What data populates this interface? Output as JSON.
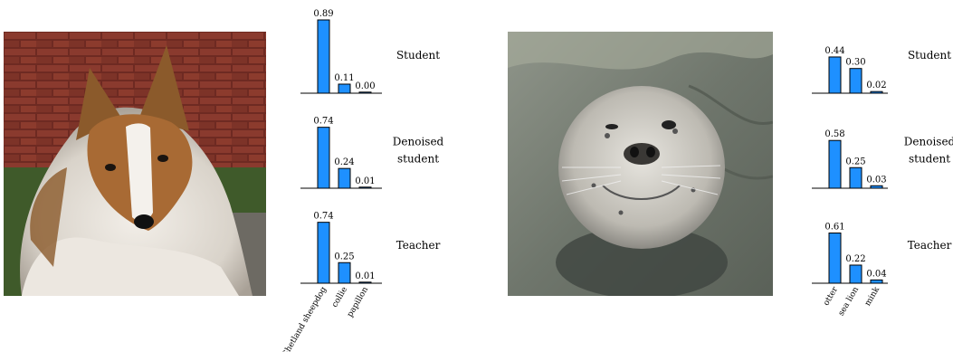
{
  "figures": [
    {
      "image": "sheltie-photo",
      "categories": [
        "Shetland sheepdog",
        "collie",
        "papillon"
      ],
      "panels": [
        {
          "label": [
            "Student"
          ],
          "values": [
            0.89,
            0.11,
            0.0
          ]
        },
        {
          "label": [
            "Denoised",
            "student"
          ],
          "values": [
            0.74,
            0.24,
            0.01
          ]
        },
        {
          "label": [
            "Teacher"
          ],
          "values": [
            0.74,
            0.25,
            0.01
          ]
        }
      ]
    },
    {
      "image": "seal-photo",
      "categories": [
        "otter",
        "sea lion",
        "mink"
      ],
      "panels": [
        {
          "label": [
            "Student"
          ],
          "values": [
            0.44,
            0.3,
            0.02
          ]
        },
        {
          "label": [
            "Denoised",
            "student"
          ],
          "values": [
            0.58,
            0.25,
            0.03
          ]
        },
        {
          "label": [
            "Teacher"
          ],
          "values": [
            0.61,
            0.22,
            0.04
          ]
        }
      ]
    }
  ],
  "chart_data": [
    {
      "type": "bar",
      "title": "",
      "categories": [
        "Shetland sheepdog",
        "collie",
        "papillon"
      ],
      "series": [
        {
          "name": "Student",
          "values": [
            0.89,
            0.11,
            0.0
          ]
        },
        {
          "name": "Denoised student",
          "values": [
            0.74,
            0.24,
            0.01
          ]
        },
        {
          "name": "Teacher",
          "values": [
            0.74,
            0.25,
            0.01
          ]
        }
      ],
      "ylim": [
        0,
        1
      ]
    },
    {
      "type": "bar",
      "title": "",
      "categories": [
        "otter",
        "sea lion",
        "mink"
      ],
      "series": [
        {
          "name": "Student",
          "values": [
            0.44,
            0.3,
            0.02
          ]
        },
        {
          "name": "Denoised student",
          "values": [
            0.58,
            0.25,
            0.03
          ]
        },
        {
          "name": "Teacher",
          "values": [
            0.61,
            0.22,
            0.04
          ]
        }
      ],
      "ylim": [
        0,
        1
      ]
    }
  ],
  "colors": {
    "bar": "#1e90ff",
    "bar_edge": "#000000",
    "axis": "#000000"
  }
}
